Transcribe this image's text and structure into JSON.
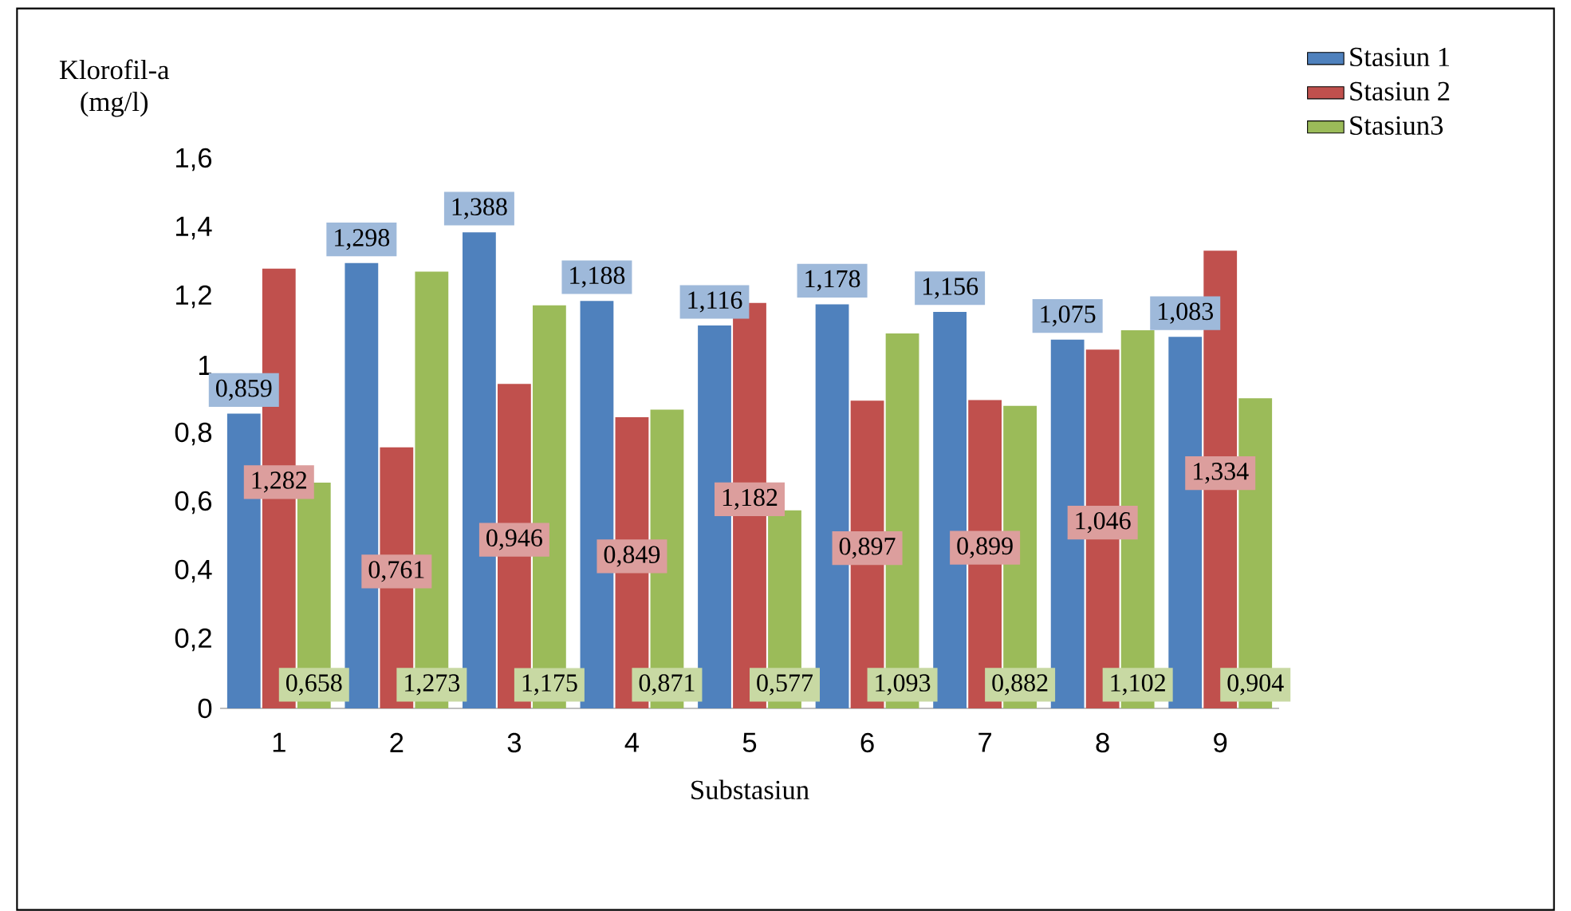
{
  "chart_data": {
    "type": "bar",
    "ylabel": "Klorofil-a (mg/l)",
    "xlabel": "Substasiun",
    "categories": [
      "1",
      "2",
      "3",
      "4",
      "5",
      "6",
      "7",
      "8",
      "9"
    ],
    "ylim": [
      0,
      1.6
    ],
    "yticks": [
      0,
      {
        "value": 0.2,
        "label": "0,2"
      },
      {
        "value": 0.4,
        "label": "0,4"
      },
      {
        "value": 0.6,
        "label": "0,6"
      },
      {
        "value": 0.8,
        "label": "0,8"
      },
      1,
      {
        "value": 1.2,
        "label": "1,2"
      },
      {
        "value": 1.4,
        "label": "1,4"
      },
      {
        "value": 1.6,
        "label": "1,6"
      }
    ],
    "legend": "top right",
    "grid": false,
    "series": [
      {
        "name": "Stasiun 1",
        "color": "#4f81bd",
        "values": [
          0.859,
          1.298,
          1.388,
          1.188,
          1.116,
          1.178,
          1.156,
          1.075,
          1.083
        ],
        "value_labels": [
          "0,859",
          "1,298",
          "1,388",
          "1,188",
          "1,116",
          "1,178",
          "1,156",
          "1,075",
          "1,083"
        ]
      },
      {
        "name": "Stasiun 2",
        "color": "#c0504d",
        "values": [
          1.282,
          0.761,
          0.946,
          0.849,
          1.182,
          0.897,
          0.899,
          1.046,
          1.334
        ],
        "value_labels": [
          "1,282",
          "0,761",
          "0,946",
          "0,849",
          "1,182",
          "0,897",
          "0,899",
          "1,046",
          "1,334"
        ]
      },
      {
        "name": "Stasiun3",
        "color": "#9bbb59",
        "values": [
          0.658,
          1.273,
          1.175,
          0.871,
          0.577,
          1.093,
          0.882,
          1.102,
          0.904
        ],
        "value_labels": [
          "0,658",
          "1,273",
          "1,175",
          "0,871",
          "0,577",
          "1,093",
          "0,882",
          "1,102",
          "0,904"
        ]
      }
    ]
  }
}
